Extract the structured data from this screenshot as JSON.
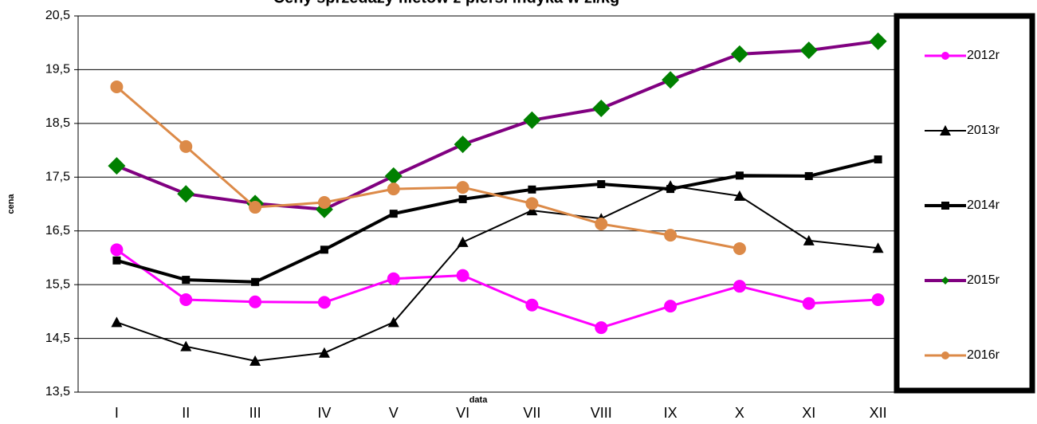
{
  "chart_data": {
    "type": "line",
    "title": "Ceny sprzedaży filetów z piersi indyka w zł/kg",
    "x_label": "data",
    "y_label": "cena",
    "categories": [
      "I",
      "II",
      "III",
      "IV",
      "V",
      "VI",
      "VII",
      "VIII",
      "IX",
      "X",
      "XI",
      "XII"
    ],
    "ylim": [
      13.5,
      20.5
    ],
    "yticks": [
      {
        "value": 13.5,
        "label": "13,5"
      },
      {
        "value": 14.5,
        "label": "14,5"
      },
      {
        "value": 15.5,
        "label": "15,5"
      },
      {
        "value": 16.5,
        "label": "16,5"
      },
      {
        "value": 17.5,
        "label": "17,5"
      },
      {
        "value": 18.5,
        "label": "18,5"
      },
      {
        "value": 19.5,
        "label": "19,5"
      },
      {
        "value": 20.5,
        "label": "20,5"
      }
    ],
    "grid": true,
    "legend": "right",
    "series": [
      {
        "name": "2012r",
        "color": "#ff00ff",
        "marker": "circle",
        "marker_color": "#ff00ff",
        "line_width": 3,
        "values": [
          16.15,
          15.22,
          15.18,
          15.17,
          15.61,
          15.67,
          15.12,
          14.7,
          15.1,
          15.47,
          15.15,
          15.22
        ]
      },
      {
        "name": "2013r",
        "color": "#000000",
        "marker": "triangle",
        "marker_color": "#000000",
        "line_width": 2,
        "values": [
          14.8,
          14.35,
          14.08,
          14.23,
          14.8,
          16.29,
          16.88,
          16.73,
          17.34,
          17.15,
          16.32,
          16.18
        ]
      },
      {
        "name": "2014r",
        "color": "#000000",
        "marker": "square",
        "marker_color": "#000000",
        "line_width": 4,
        "values": [
          15.95,
          15.59,
          15.55,
          16.15,
          16.82,
          17.09,
          17.27,
          17.37,
          17.28,
          17.53,
          17.52,
          17.83
        ]
      },
      {
        "name": "2015r",
        "color": "#800080",
        "marker": "diamond",
        "marker_color": "#008000",
        "line_width": 4,
        "values": [
          17.71,
          17.19,
          17.01,
          16.9,
          17.52,
          18.11,
          18.56,
          18.78,
          19.31,
          19.79,
          19.86,
          20.03
        ]
      },
      {
        "name": "2016r",
        "color": "#dc8a48",
        "marker": "circle",
        "marker_color": "#dc8a48",
        "line_width": 3,
        "values": [
          19.18,
          18.07,
          16.94,
          17.03,
          17.28,
          17.31,
          17.01,
          16.63,
          16.42,
          16.17,
          null,
          null
        ]
      }
    ]
  }
}
